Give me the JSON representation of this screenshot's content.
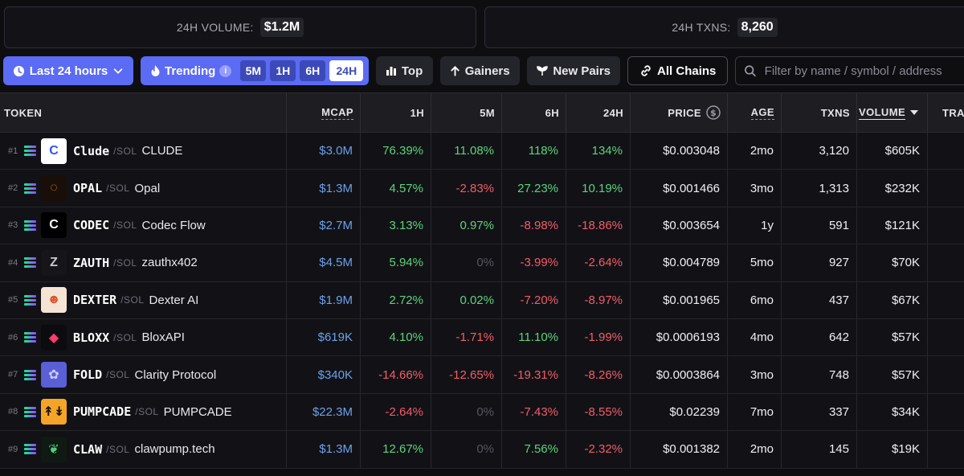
{
  "stats": {
    "volume_label": "24H VOLUME:",
    "volume_value": "$1.2M",
    "txns_label": "24H TXNS:",
    "txns_value": "8,260"
  },
  "toolbar": {
    "timeframe_label": "Last 24 hours",
    "trending_label": "Trending",
    "trending_info": "i",
    "segments": [
      "5M",
      "1H",
      "6H",
      "24H"
    ],
    "active_segment": "24H",
    "top_label": "Top",
    "gainers_label": "Gainers",
    "new_pairs_label": "New Pairs",
    "all_chains_label": "All Chains",
    "search_placeholder": "Filter by name / symbol / address"
  },
  "colors": {
    "accent": "#5b6bf3",
    "positive": "#5dd37d",
    "negative": "#f25c6a",
    "mcap": "#6ba1ec"
  },
  "columns": {
    "token": "TOKEN",
    "mcap": "MCAP",
    "h1": "1H",
    "m5": "5M",
    "h6": "6H",
    "h24": "24H",
    "price": "PRICE",
    "age": "AGE",
    "txns": "TXNS",
    "volume": "VOLUME",
    "trad": "TRAD"
  },
  "rows": [
    {
      "rank": "#1",
      "symbol": "Clude",
      "chain": "/SOL",
      "name": "CLUDE",
      "logo": "C",
      "logo_bg": "#ffffff",
      "logo_fg": "#2e55f0",
      "mcap": "$3.0M",
      "h1": "76.39%",
      "m5": "11.08%",
      "h6": "118%",
      "h24": "134%",
      "price": "$0.003048",
      "age": "2mo",
      "txns": "3,120",
      "volume": "$605K"
    },
    {
      "rank": "#2",
      "symbol": "OPAL",
      "chain": "/SOL",
      "name": "Opal",
      "logo": "◌",
      "logo_bg": "#1a0f08",
      "logo_fg": "#e08a3a",
      "mcap": "$1.3M",
      "h1": "4.57%",
      "m5": "-2.83%",
      "h6": "27.23%",
      "h24": "10.19%",
      "price": "$0.001466",
      "age": "3mo",
      "txns": "1,313",
      "volume": "$232K"
    },
    {
      "rank": "#3",
      "symbol": "CODEC",
      "chain": "/SOL",
      "name": "Codec Flow",
      "logo": "C",
      "logo_bg": "#000000",
      "logo_fg": "#ffffff",
      "mcap": "$2.7M",
      "h1": "3.13%",
      "m5": "0.97%",
      "h6": "-8.98%",
      "h24": "-18.86%",
      "price": "$0.003654",
      "age": "1y",
      "txns": "591",
      "volume": "$121K"
    },
    {
      "rank": "#4",
      "symbol": "ZAUTH",
      "chain": "/SOL",
      "name": "zauthx402",
      "logo": "Z",
      "logo_bg": "#16161a",
      "logo_fg": "#c9c9cf",
      "mcap": "$4.5M",
      "h1": "5.94%",
      "m5": "0%",
      "h6": "-3.99%",
      "h24": "-2.64%",
      "price": "$0.004789",
      "age": "5mo",
      "txns": "927",
      "volume": "$70K"
    },
    {
      "rank": "#5",
      "symbol": "DEXTER",
      "chain": "/SOL",
      "name": "Dexter AI",
      "logo": "☻",
      "logo_bg": "#f4e4d4",
      "logo_fg": "#e0542e",
      "mcap": "$1.9M",
      "h1": "2.72%",
      "m5": "0.02%",
      "h6": "-7.20%",
      "h24": "-8.97%",
      "price": "$0.001965",
      "age": "6mo",
      "txns": "437",
      "volume": "$67K"
    },
    {
      "rank": "#6",
      "symbol": "BLOXX",
      "chain": "/SOL",
      "name": "BloxAPI",
      "logo": "◆",
      "logo_bg": "#0c0c10",
      "logo_fg": "#ff3b6b",
      "mcap": "$619K",
      "h1": "4.10%",
      "m5": "-1.71%",
      "h6": "11.10%",
      "h24": "-1.99%",
      "price": "$0.0006193",
      "age": "4mo",
      "txns": "642",
      "volume": "$57K"
    },
    {
      "rank": "#7",
      "symbol": "FOLD",
      "chain": "/SOL",
      "name": "Clarity Protocol",
      "logo": "✿",
      "logo_bg": "#5a5fd6",
      "logo_fg": "#c8caff",
      "mcap": "$340K",
      "h1": "-14.66%",
      "m5": "-12.65%",
      "h6": "-19.31%",
      "h24": "-8.26%",
      "price": "$0.0003864",
      "age": "3mo",
      "txns": "748",
      "volume": "$57K"
    },
    {
      "rank": "#8",
      "symbol": "PUMPCADE",
      "chain": "/SOL",
      "name": "PUMPCADE",
      "logo": "↟↡",
      "logo_bg": "#f4a527",
      "logo_fg": "#1a1205",
      "mcap": "$22.3M",
      "h1": "-2.64%",
      "m5": "0%",
      "h6": "-7.43%",
      "h24": "-8.55%",
      "price": "$0.02239",
      "age": "7mo",
      "txns": "337",
      "volume": "$34K"
    },
    {
      "rank": "#9",
      "symbol": "CLAW",
      "chain": "/SOL",
      "name": "clawpump.tech",
      "logo": "❦",
      "logo_bg": "#0e1a12",
      "logo_fg": "#4fd07a",
      "mcap": "$1.3M",
      "h1": "12.67%",
      "m5": "0%",
      "h6": "7.56%",
      "h24": "-2.32%",
      "price": "$0.001382",
      "age": "2mo",
      "txns": "145",
      "volume": "$19K"
    }
  ]
}
